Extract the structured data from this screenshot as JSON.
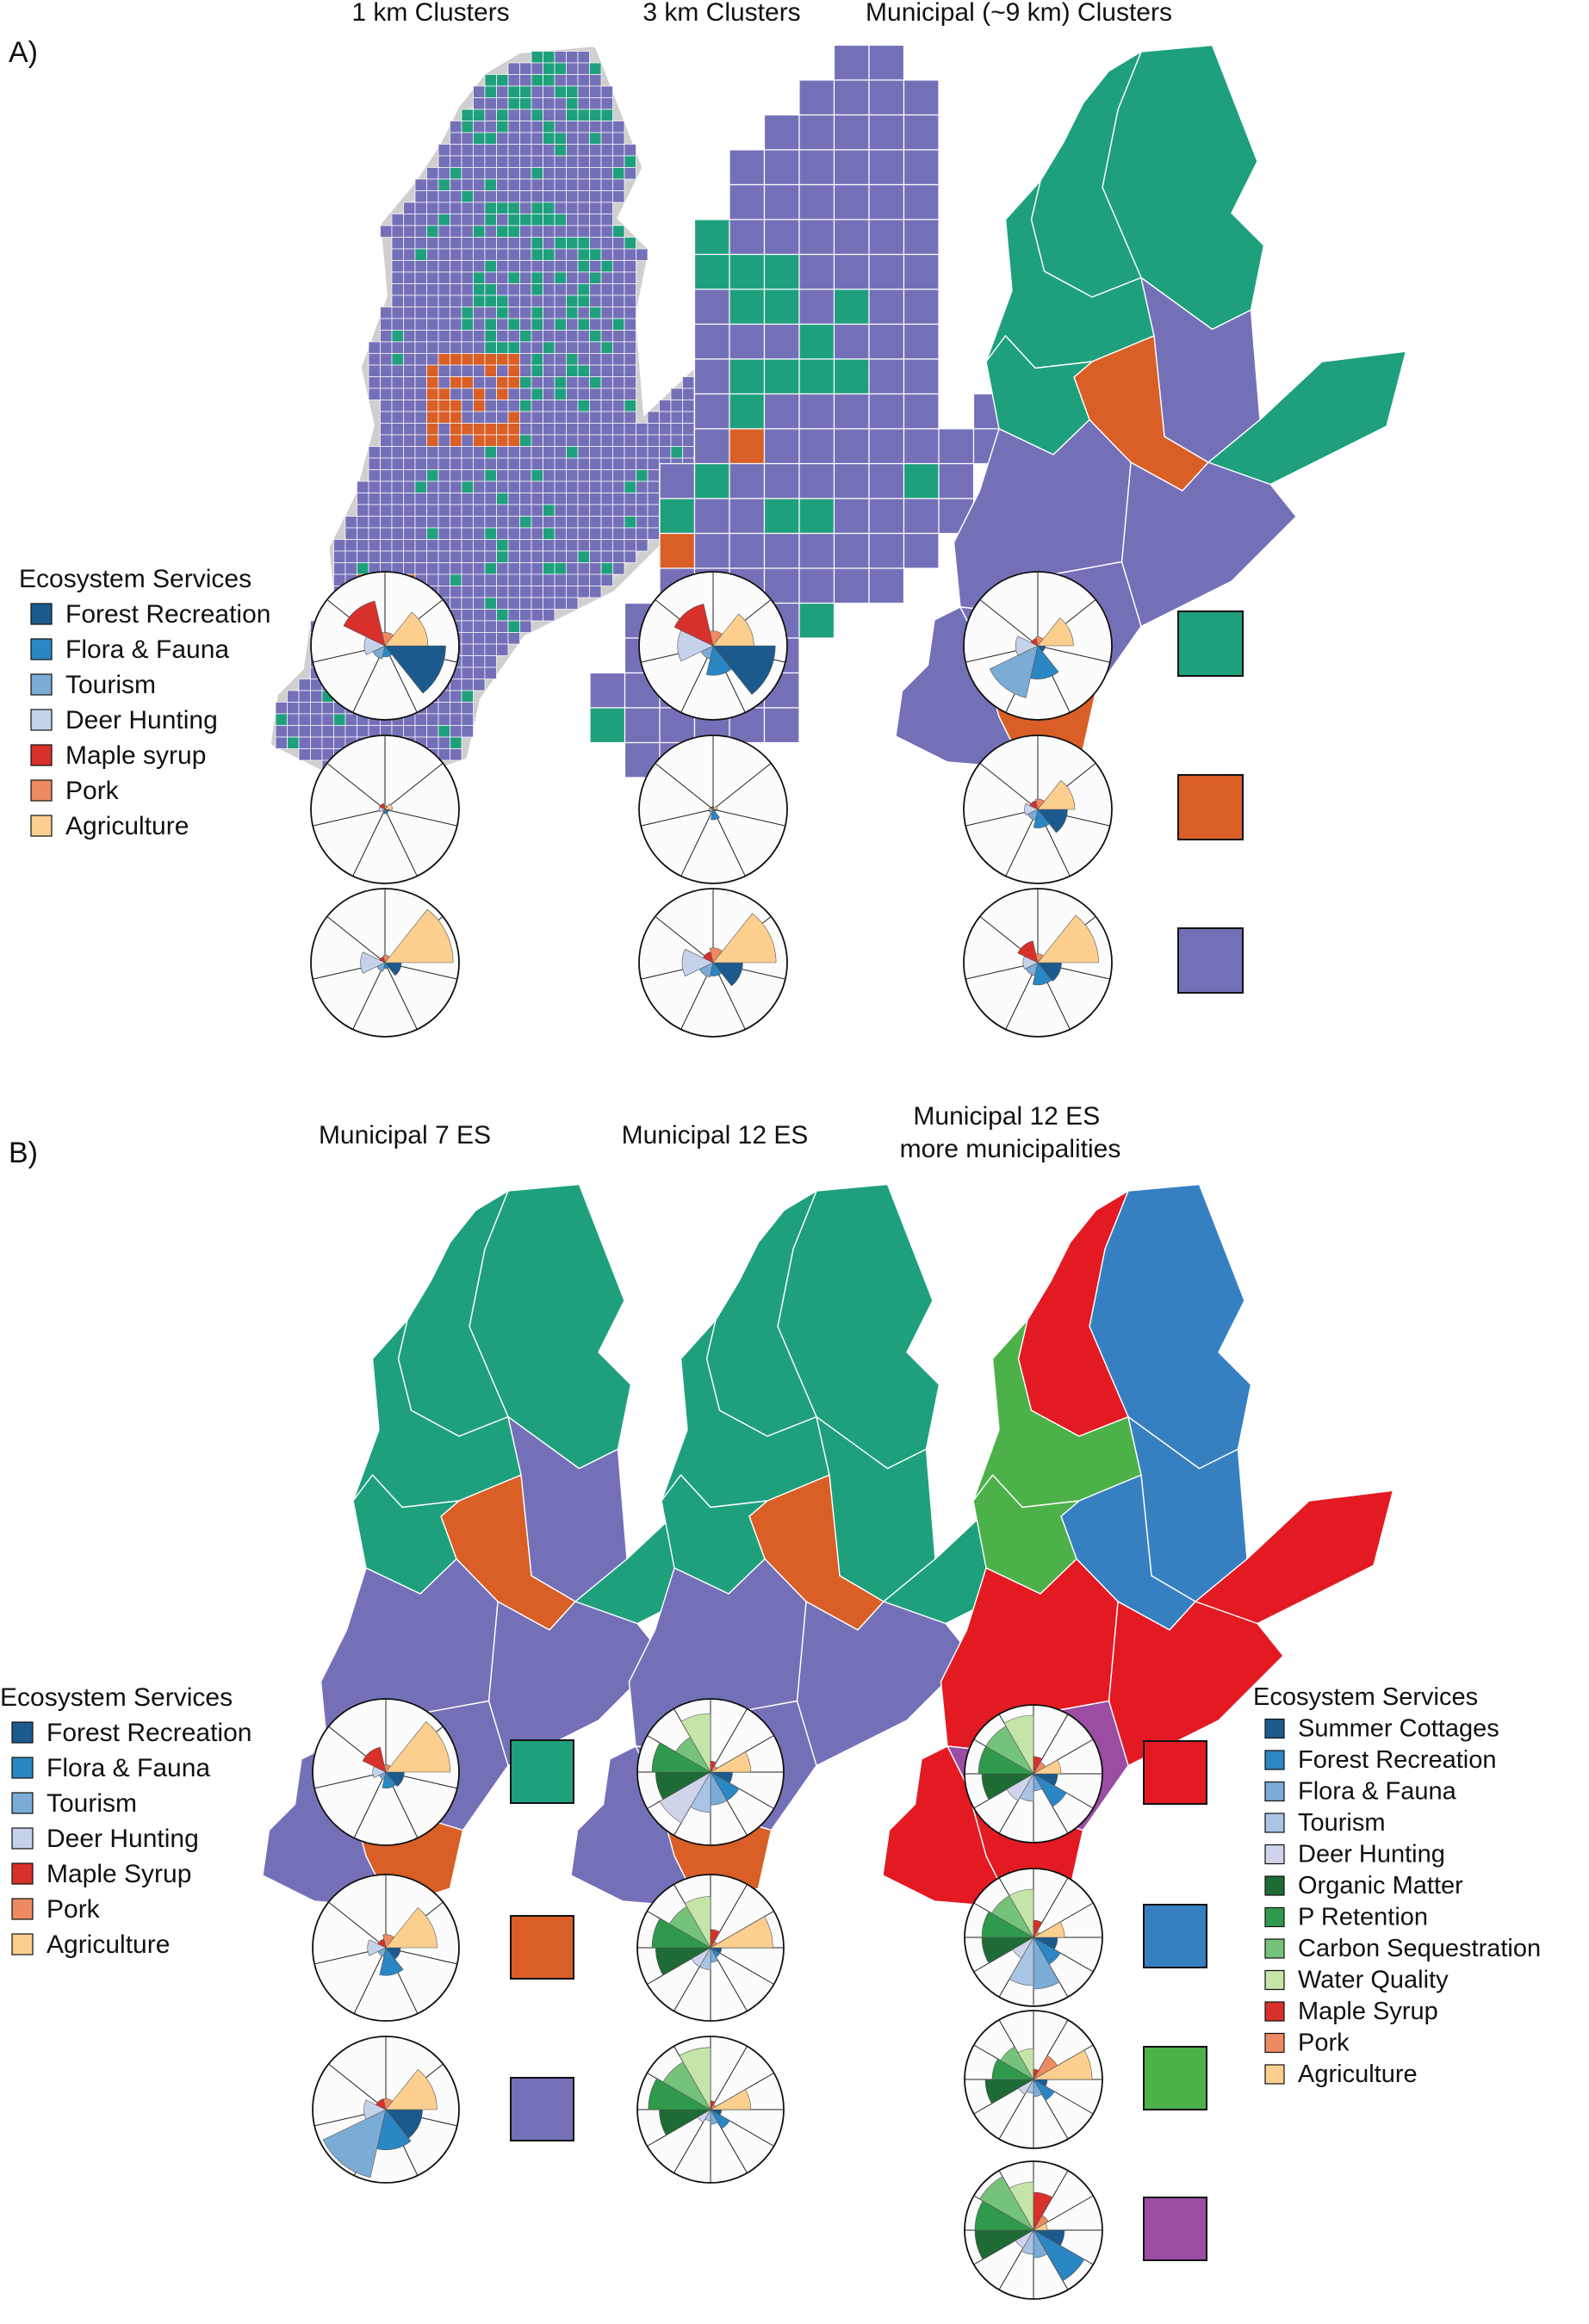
{
  "panel_a": {
    "label": "A)",
    "columns": [
      {
        "title": "1 km Clusters"
      },
      {
        "title": "3 km Clusters"
      },
      {
        "title": "Municipal (~9 km) Clusters"
      }
    ],
    "legend": {
      "title": "Ecosystem Services",
      "items": [
        {
          "label": "Forest Recreation",
          "color": "#1c5a8e"
        },
        {
          "label": "Flora & Fauna",
          "color": "#2b86c4"
        },
        {
          "label": "Tourism",
          "color": "#7bacd6"
        },
        {
          "label": "Deer Hunting",
          "color": "#c6d2ea"
        },
        {
          "label": "Maple syrup",
          "color": "#d8302a"
        },
        {
          "label": "Pork",
          "color": "#ee8a62"
        },
        {
          "label": "Agriculture",
          "color": "#fccf8f"
        }
      ]
    },
    "cluster_colors": [
      "#1fa07d",
      "#d95f26",
      "#7470b8"
    ],
    "rows": [
      [
        [
          0.82,
          0.15,
          0.18,
          0.28,
          0.62,
          0.18,
          0.58
        ],
        [
          0.84,
          0.4,
          0.18,
          0.48,
          0.58,
          0.2,
          0.55
        ],
        [
          0.1,
          0.45,
          0.72,
          0.3,
          0.1,
          0.12,
          0.48
        ]
      ],
      [
        [
          0.05,
          0.06,
          0.04,
          0.08,
          0.08,
          0.05,
          0.1
        ],
        [
          0.04,
          0.14,
          0.06,
          0.05,
          0.04,
          0.03,
          0.06
        ],
        [
          0.4,
          0.25,
          0.15,
          0.18,
          0.12,
          0.14,
          0.5
        ]
      ],
      [
        [
          0.22,
          0.08,
          0.12,
          0.33,
          0.08,
          0.1,
          0.92
        ],
        [
          0.4,
          0.18,
          0.2,
          0.42,
          0.15,
          0.2,
          0.85
        ],
        [
          0.32,
          0.3,
          0.18,
          0.2,
          0.3,
          0.12,
          0.82
        ]
      ]
    ]
  },
  "panel_b": {
    "label": "B)",
    "columns": [
      {
        "title": "Municipal 7 ES"
      },
      {
        "title": "Municipal 12 ES"
      },
      {
        "title": "Municipal 12 ES\nmore municipalities"
      }
    ],
    "legend7": {
      "title": "Ecosystem Services",
      "items": [
        {
          "label": "Forest Recreation",
          "color": "#1c5a8e"
        },
        {
          "label": "Flora & Fauna",
          "color": "#2b86c4"
        },
        {
          "label": "Tourism",
          "color": "#7bacd6"
        },
        {
          "label": "Deer Hunting",
          "color": "#c6d2ea"
        },
        {
          "label": "Maple Syrup",
          "color": "#d8302a"
        },
        {
          "label": "Pork",
          "color": "#ee8a62"
        },
        {
          "label": "Agriculture",
          "color": "#fccf8f"
        }
      ]
    },
    "legend12": {
      "title": "Ecosystem Services",
      "items": [
        {
          "label": "Summer Cottages",
          "color": "#1c5a8e"
        },
        {
          "label": "Forest Recreation",
          "color": "#2b86c4"
        },
        {
          "label": "Flora & Fauna",
          "color": "#7bacd6"
        },
        {
          "label": "Tourism",
          "color": "#a9c4e4"
        },
        {
          "label": "Deer Hunting",
          "color": "#cfd4ea"
        },
        {
          "label": "Organic Matter",
          "color": "#1e6b35"
        },
        {
          "label": "P Retention",
          "color": "#2f9a4b"
        },
        {
          "label": "Carbon Sequestration",
          "color": "#75c27a"
        },
        {
          "label": "Water Quality",
          "color": "#c4e4a8"
        },
        {
          "label": "Maple Syrup",
          "color": "#d8302a"
        },
        {
          "label": "Pork",
          "color": "#ee8a62"
        },
        {
          "label": "Agriculture",
          "color": "#fccf8f"
        }
      ]
    },
    "colors_3": [
      "#1fa07d",
      "#d95f26",
      "#7470b8"
    ],
    "colors_4": [
      "#e31a22",
      "#3680c2",
      "#4db14a",
      "#9b4da3"
    ],
    "col1": [
      [
        0.25,
        0.22,
        0.1,
        0.18,
        0.35,
        0.1,
        0.88
      ],
      [
        0.2,
        0.38,
        0.12,
        0.25,
        0.12,
        0.18,
        0.7
      ],
      [
        0.5,
        0.55,
        0.95,
        0.3,
        0.15,
        0.15,
        0.7
      ]
    ],
    "col2": [
      [
        0.3,
        0.45,
        0.45,
        0.55,
        0.8,
        0.75,
        0.8,
        0.55,
        0.8,
        0.15,
        0.1,
        0.55
      ],
      [
        0.15,
        0.15,
        0.2,
        0.3,
        0.3,
        0.75,
        0.8,
        0.65,
        0.7,
        0.25,
        0.1,
        0.85
      ],
      [
        0.15,
        0.3,
        0.2,
        0.15,
        0.2,
        0.7,
        0.85,
        0.75,
        0.85,
        0.12,
        0.08,
        0.55
      ]
    ],
    "col3": [
      [
        0.35,
        0.55,
        0.25,
        0.4,
        0.45,
        0.75,
        0.8,
        0.8,
        0.85,
        0.25,
        0.2,
        0.4
      ],
      [
        0.35,
        0.45,
        0.75,
        0.7,
        0.35,
        0.75,
        0.75,
        0.7,
        0.7,
        0.25,
        0.1,
        0.45
      ],
      [
        0.2,
        0.35,
        0.25,
        0.2,
        0.25,
        0.7,
        0.6,
        0.55,
        0.45,
        0.15,
        0.4,
        0.85
      ],
      [
        0.45,
        0.85,
        0.4,
        0.35,
        0.3,
        0.85,
        0.85,
        0.9,
        0.7,
        0.55,
        0.25,
        0.2
      ]
    ]
  }
}
